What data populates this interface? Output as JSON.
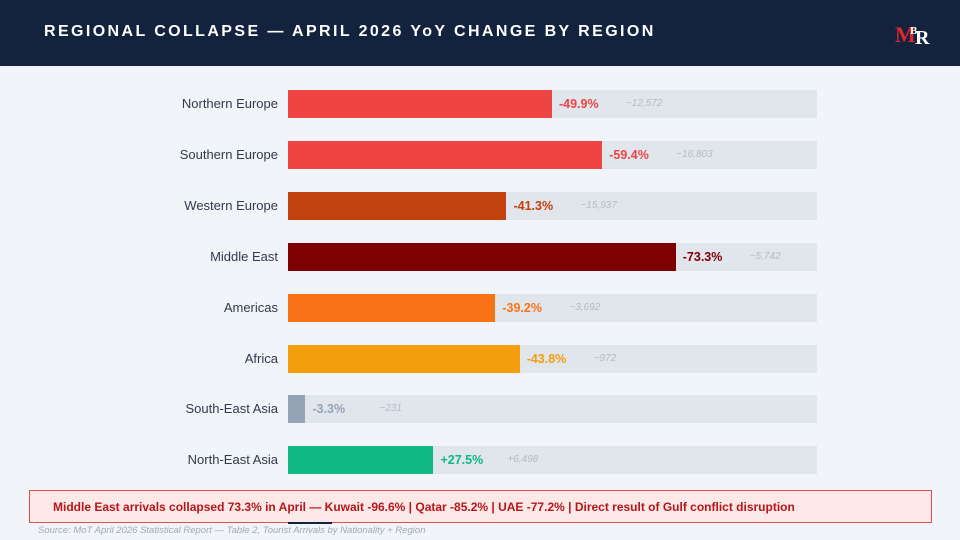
{
  "header": {
    "title": "REGIONAL COLLAPSE — APRIL 2026 YoY CHANGE BY REGION",
    "logo_text": "MBR"
  },
  "colors": {
    "header_bg": "#13223d",
    "track": "#e1e5ec",
    "logo_red": "#e0262f",
    "logo_white": "#ffffff"
  },
  "chart_data": {
    "type": "bar",
    "orientation": "horizontal",
    "xlim": [
      0,
      100
    ],
    "categories": [
      "Northern Europe",
      "Southern Europe",
      "Western Europe",
      "Middle East",
      "Americas",
      "Africa",
      "South-East Asia",
      "North-East Asia"
    ],
    "values": [
      -49.9,
      -59.4,
      -41.3,
      -73.3,
      -39.2,
      -43.8,
      -3.3,
      27.5
    ],
    "value_labels": [
      "-49.9%",
      "-59.4%",
      "-41.3%",
      "-73.3%",
      "-39.2%",
      "-43.8%",
      "-3.3%",
      "+27.5%"
    ],
    "absolute_changes": [
      -12572,
      -16803,
      -15937,
      -5742,
      -3692,
      -972,
      -231,
      6498
    ],
    "absolute_labels": [
      "−12,572",
      "−16,803",
      "−15,937",
      "−5,742",
      "−3,692",
      "−972",
      "−231",
      "+6,498"
    ],
    "bar_colors": [
      "#ef4444",
      "#ef4444",
      "#c2410c",
      "#7f0000",
      "#f97316",
      "#f59e0b",
      "#94a3b8",
      "#10b981"
    ],
    "label_colors": [
      "#ef4444",
      "#ef4444",
      "#c2410c",
      "#7f0000",
      "#f97316",
      "#f59e0b",
      "#94a3b8",
      "#10b981"
    ]
  },
  "callout": {
    "text": "Middle East arrivals collapsed 73.3% in April — Kuwait -96.6% | Qatar -85.2% | UAE -77.2% | Direct result of Gulf conflict disruption"
  },
  "source": "Source: MoT April 2026 Statistical Report — Table 2, Tourist Arrivals by Nationality + Region"
}
